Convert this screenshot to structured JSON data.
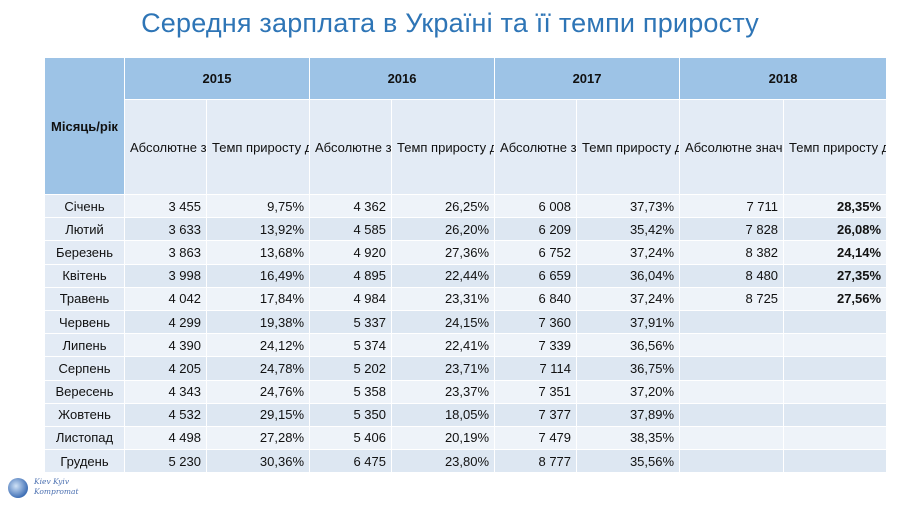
{
  "title": "Середня зарплата в Україні та її темпи приросту",
  "logo_text": [
    "Kiev Kyiv",
    "Kompromat"
  ],
  "colors": {
    "title": "#2e75b6",
    "header": "#9dc3e6",
    "highlight": "#2e8b1e"
  },
  "chart_data": {
    "type": "table",
    "title": "Середня зарплата в Україні та її темпи приросту",
    "corner_label": "Місяць/рік",
    "years": [
      "2015",
      "2016",
      "2017",
      "2018"
    ],
    "sub_headers": {
      "absolute": "Абсолютне значення (грн)",
      "growth": "Темп приросту до відповідного місяця минулого року"
    },
    "rows": [
      {
        "month": "Січень",
        "cells": [
          "3 455",
          "9,75%",
          "4 362",
          "26,25%",
          "6 008",
          "37,73%",
          "7 711",
          "28,35%"
        ]
      },
      {
        "month": "Лютий",
        "cells": [
          "3 633",
          "13,92%",
          "4 585",
          "26,20%",
          "6 209",
          "35,42%",
          "7 828",
          "26,08%"
        ]
      },
      {
        "month": "Березень",
        "cells": [
          "3 863",
          "13,68%",
          "4 920",
          "27,36%",
          "6 752",
          "37,24%",
          "8 382",
          "24,14%"
        ]
      },
      {
        "month": "Квітень",
        "cells": [
          "3 998",
          "16,49%",
          "4 895",
          "22,44%",
          "6 659",
          "36,04%",
          "8 480",
          "27,35%"
        ]
      },
      {
        "month": "Травень",
        "cells": [
          "4 042",
          "17,84%",
          "4 984",
          "23,31%",
          "6 840",
          "37,24%",
          "8 725",
          "27,56%"
        ]
      },
      {
        "month": "Червень",
        "cells": [
          "4 299",
          "19,38%",
          "5 337",
          "24,15%",
          "7 360",
          "37,91%",
          "",
          ""
        ]
      },
      {
        "month": "Липень",
        "cells": [
          "4 390",
          "24,12%",
          "5 374",
          "22,41%",
          "7 339",
          "36,56%",
          "",
          ""
        ]
      },
      {
        "month": "Серпень",
        "cells": [
          "4 205",
          "24,78%",
          "5 202",
          "23,71%",
          "7 114",
          "36,75%",
          "",
          ""
        ]
      },
      {
        "month": "Вересень",
        "cells": [
          "4 343",
          "24,76%",
          "5 358",
          "23,37%",
          "7 351",
          "37,20%",
          "",
          ""
        ]
      },
      {
        "month": "Жовтень",
        "cells": [
          "4 532",
          "29,15%",
          "5 350",
          "18,05%",
          "7 377",
          "37,89%",
          "",
          ""
        ]
      },
      {
        "month": "Листопад",
        "cells": [
          "4 498",
          "27,28%",
          "5 406",
          "20,19%",
          "7 479",
          "38,35%",
          "",
          ""
        ]
      },
      {
        "month": "Грудень",
        "cells": [
          "5 230",
          "30,36%",
          "6 475",
          "23,80%",
          "8 777",
          "35,56%",
          "",
          ""
        ]
      }
    ]
  }
}
